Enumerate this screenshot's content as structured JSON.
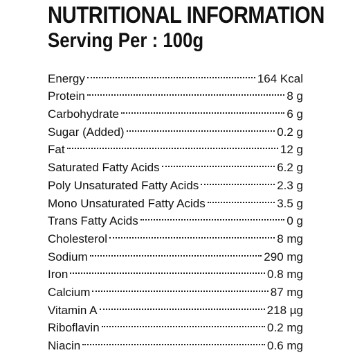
{
  "header": {
    "title": "NUTRITIONAL INFORMATION",
    "serving": "Serving Per : 100g"
  },
  "nutrients": [
    {
      "name": "Energy",
      "value": "164 Kcal"
    },
    {
      "name": "Protein",
      "value": "8 g"
    },
    {
      "name": "Carbohydrate",
      "value": "6 g"
    },
    {
      "name": "Sugar (Added)",
      "value": "0.2 g"
    },
    {
      "name": "Fat",
      "value": "12 g"
    },
    {
      "name": "Saturated Fatty Acids",
      "value": "6.2 g"
    },
    {
      "name": "Poly Unsaturated Fatty Acids",
      "value": "2.3 g"
    },
    {
      "name": "Mono Unsaturated Fatty Acids",
      "value": "3.5 g"
    },
    {
      "name": "Trans Fatty Acids",
      "value": "0 g"
    },
    {
      "name": "Cholesterol",
      "value": "8 mg"
    },
    {
      "name": "Sodium",
      "value": "290 mg"
    },
    {
      "name": "Iron",
      "value": "0.8 mg"
    },
    {
      "name": "Calcium",
      "value": "87 mg"
    },
    {
      "name": "Vitamin A",
      "value": "218 µg"
    },
    {
      "name": "Riboflavin",
      "value": "0.2 mg"
    },
    {
      "name": "Niacin",
      "value": "0.6 mg"
    }
  ]
}
